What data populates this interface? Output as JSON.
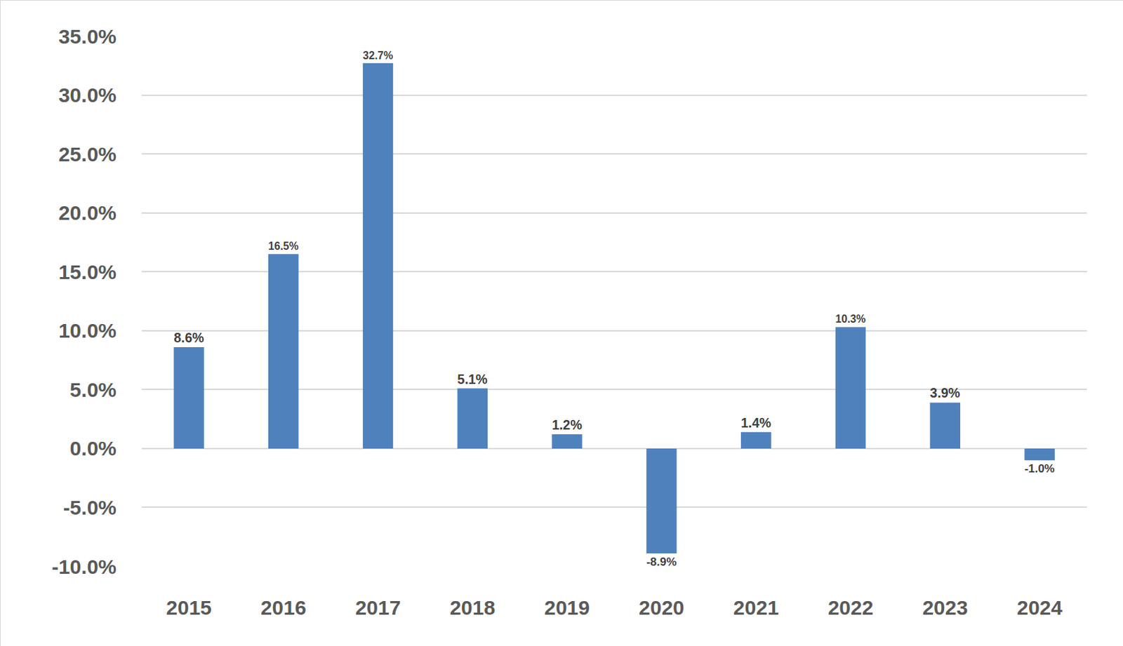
{
  "chart_data": {
    "type": "bar",
    "categories": [
      "2015",
      "2016",
      "2017",
      "2018",
      "2019",
      "2020",
      "2021",
      "2022",
      "2023",
      "2024"
    ],
    "values": [
      8.6,
      16.5,
      32.7,
      5.1,
      1.2,
      -8.9,
      1.4,
      10.3,
      3.9,
      -1.0
    ],
    "value_labels": [
      "8.6%",
      "16.5%",
      "32.7%",
      "5.1%",
      "1.2%",
      "-8.9%",
      "1.4%",
      "10.3%",
      "3.9%",
      "-1.0%"
    ],
    "color": "#4f81bd",
    "ylim": [
      -10,
      35
    ],
    "yticks": [
      {
        "value": -10,
        "label": "-10.0%"
      },
      {
        "value": -5,
        "label": "-5.0%"
      },
      {
        "value": 0,
        "label": "0.0%"
      },
      {
        "value": 5,
        "label": "5.0%"
      },
      {
        "value": 10,
        "label": "10.0%"
      },
      {
        "value": 15,
        "label": "15.0%"
      },
      {
        "value": 20,
        "label": "20.0%"
      },
      {
        "value": 25,
        "label": "25.0%"
      },
      {
        "value": 30,
        "label": "30.0%"
      },
      {
        "value": 35,
        "label": "35.0%"
      }
    ],
    "grid": true,
    "data_labels": true
  }
}
